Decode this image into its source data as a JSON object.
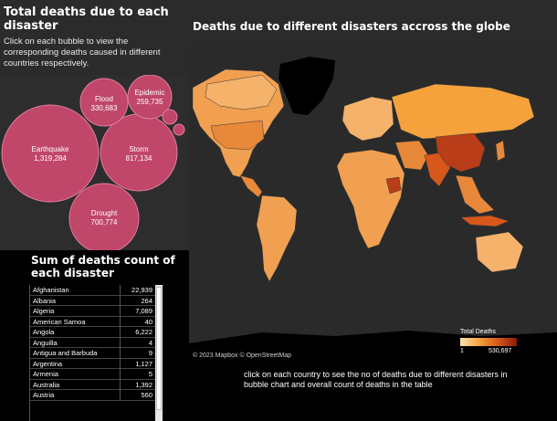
{
  "left": {
    "title": "Total deaths due to each disaster",
    "description": "Click on each bubble  to view the corresponding deaths caused in different countries respectively."
  },
  "bubbles": [
    {
      "name": "Earthquake",
      "value": "1,319,284"
    },
    {
      "name": "Storm",
      "value": "817,134"
    },
    {
      "name": "Drought",
      "value": "700,774"
    },
    {
      "name": "Flood",
      "value": "330,683"
    },
    {
      "name": "Epidemic",
      "value": "259,735"
    },
    {
      "name": "",
      "value": ""
    },
    {
      "name": "",
      "value": ""
    }
  ],
  "table": {
    "title": "Sum of deaths count of each disaster",
    "rows": [
      {
        "country": "Afghanistan",
        "value": "22,939"
      },
      {
        "country": "Albania",
        "value": "264"
      },
      {
        "country": "Algeria",
        "value": "7,089"
      },
      {
        "country": "American Samoa",
        "value": "40"
      },
      {
        "country": "Angola",
        "value": "6,222"
      },
      {
        "country": "Anguilla",
        "value": "4"
      },
      {
        "country": "Antigua and Barbuda",
        "value": "9"
      },
      {
        "country": "Argentina",
        "value": "1,127"
      },
      {
        "country": "Armenia",
        "value": "5"
      },
      {
        "country": "Australia",
        "value": "1,392"
      },
      {
        "country": "Austria",
        "value": "560"
      }
    ]
  },
  "map": {
    "title": "Deaths due to different disasters accross the globe",
    "attribution": "© 2023 Mapbox © OpenStreetMap",
    "legend_title": "Total Deaths",
    "legend_min": "1",
    "legend_max": "530,697"
  },
  "note": "click on each country to see the no of deaths due to different disasters  in  bubble chart and overall count of deaths in the table",
  "colors": {
    "bubble": "#c0476a",
    "bubble_stroke": "#e07fa0",
    "panel": "#2d2d2d",
    "land_light": "#f5b26a",
    "land_mid": "#e8883a",
    "land_dark": "#b83d18",
    "greenland": "#000000"
  }
}
